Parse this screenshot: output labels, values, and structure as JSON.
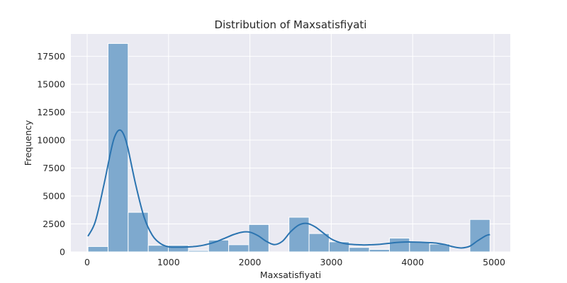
{
  "chart_data": {
    "type": "bar",
    "title": "Distribution of Maxsatisfiyati",
    "xlabel": "Maxsatisfiyati",
    "ylabel": "Frequency",
    "xlim": [
      -200,
      5200
    ],
    "ylim": [
      0,
      19500
    ],
    "grid": true,
    "x_ticks": [
      0,
      1000,
      2000,
      3000,
      4000,
      5000
    ],
    "y_ticks": [
      0,
      2500,
      5000,
      7500,
      10000,
      12500,
      15000,
      17500
    ],
    "bin_width": 247,
    "bins": [
      {
        "start": 10,
        "count": 480
      },
      {
        "start": 257,
        "count": 18650
      },
      {
        "start": 504,
        "count": 3540
      },
      {
        "start": 751,
        "count": 590
      },
      {
        "start": 998,
        "count": 590
      },
      {
        "start": 1245,
        "count": 120
      },
      {
        "start": 1492,
        "count": 1060
      },
      {
        "start": 1739,
        "count": 640
      },
      {
        "start": 1986,
        "count": 2450
      },
      {
        "start": 2233,
        "count": 0
      },
      {
        "start": 2480,
        "count": 3100
      },
      {
        "start": 2727,
        "count": 1640
      },
      {
        "start": 2974,
        "count": 900
      },
      {
        "start": 3221,
        "count": 400
      },
      {
        "start": 3468,
        "count": 220
      },
      {
        "start": 3715,
        "count": 1230
      },
      {
        "start": 3962,
        "count": 900
      },
      {
        "start": 4209,
        "count": 700
      },
      {
        "start": 4456,
        "count": 0
      },
      {
        "start": 4703,
        "count": 2900
      }
    ],
    "kde": {
      "x": [
        10,
        100,
        200,
        300,
        350,
        400,
        450,
        500,
        600,
        700,
        800,
        900,
        1000,
        1100,
        1200,
        1300,
        1400,
        1500,
        1600,
        1700,
        1800,
        1900,
        2000,
        2100,
        2200,
        2300,
        2400,
        2500,
        2600,
        2700,
        2800,
        2900,
        3000,
        3100,
        3200,
        3300,
        3400,
        3500,
        3600,
        3700,
        3800,
        3900,
        4000,
        4100,
        4200,
        4300,
        4400,
        4500,
        4600,
        4700,
        4800,
        4900,
        4950
      ],
      "y": [
        1400,
        2700,
        5800,
        9300,
        10500,
        10900,
        10500,
        9300,
        5900,
        3100,
        1500,
        750,
        450,
        420,
        430,
        470,
        560,
        720,
        950,
        1250,
        1550,
        1760,
        1760,
        1450,
        950,
        650,
        950,
        1800,
        2400,
        2550,
        2250,
        1700,
        1150,
        850,
        700,
        650,
        620,
        640,
        680,
        760,
        840,
        880,
        880,
        860,
        830,
        780,
        650,
        450,
        350,
        500,
        1000,
        1450,
        1550
      ]
    },
    "colors": {
      "bar_fill": "#7ea9ce",
      "bar_edge": "#ffffff",
      "kde_line": "#2b74b0",
      "plot_background": "#eaeaf2",
      "grid": "#ffffff"
    }
  }
}
